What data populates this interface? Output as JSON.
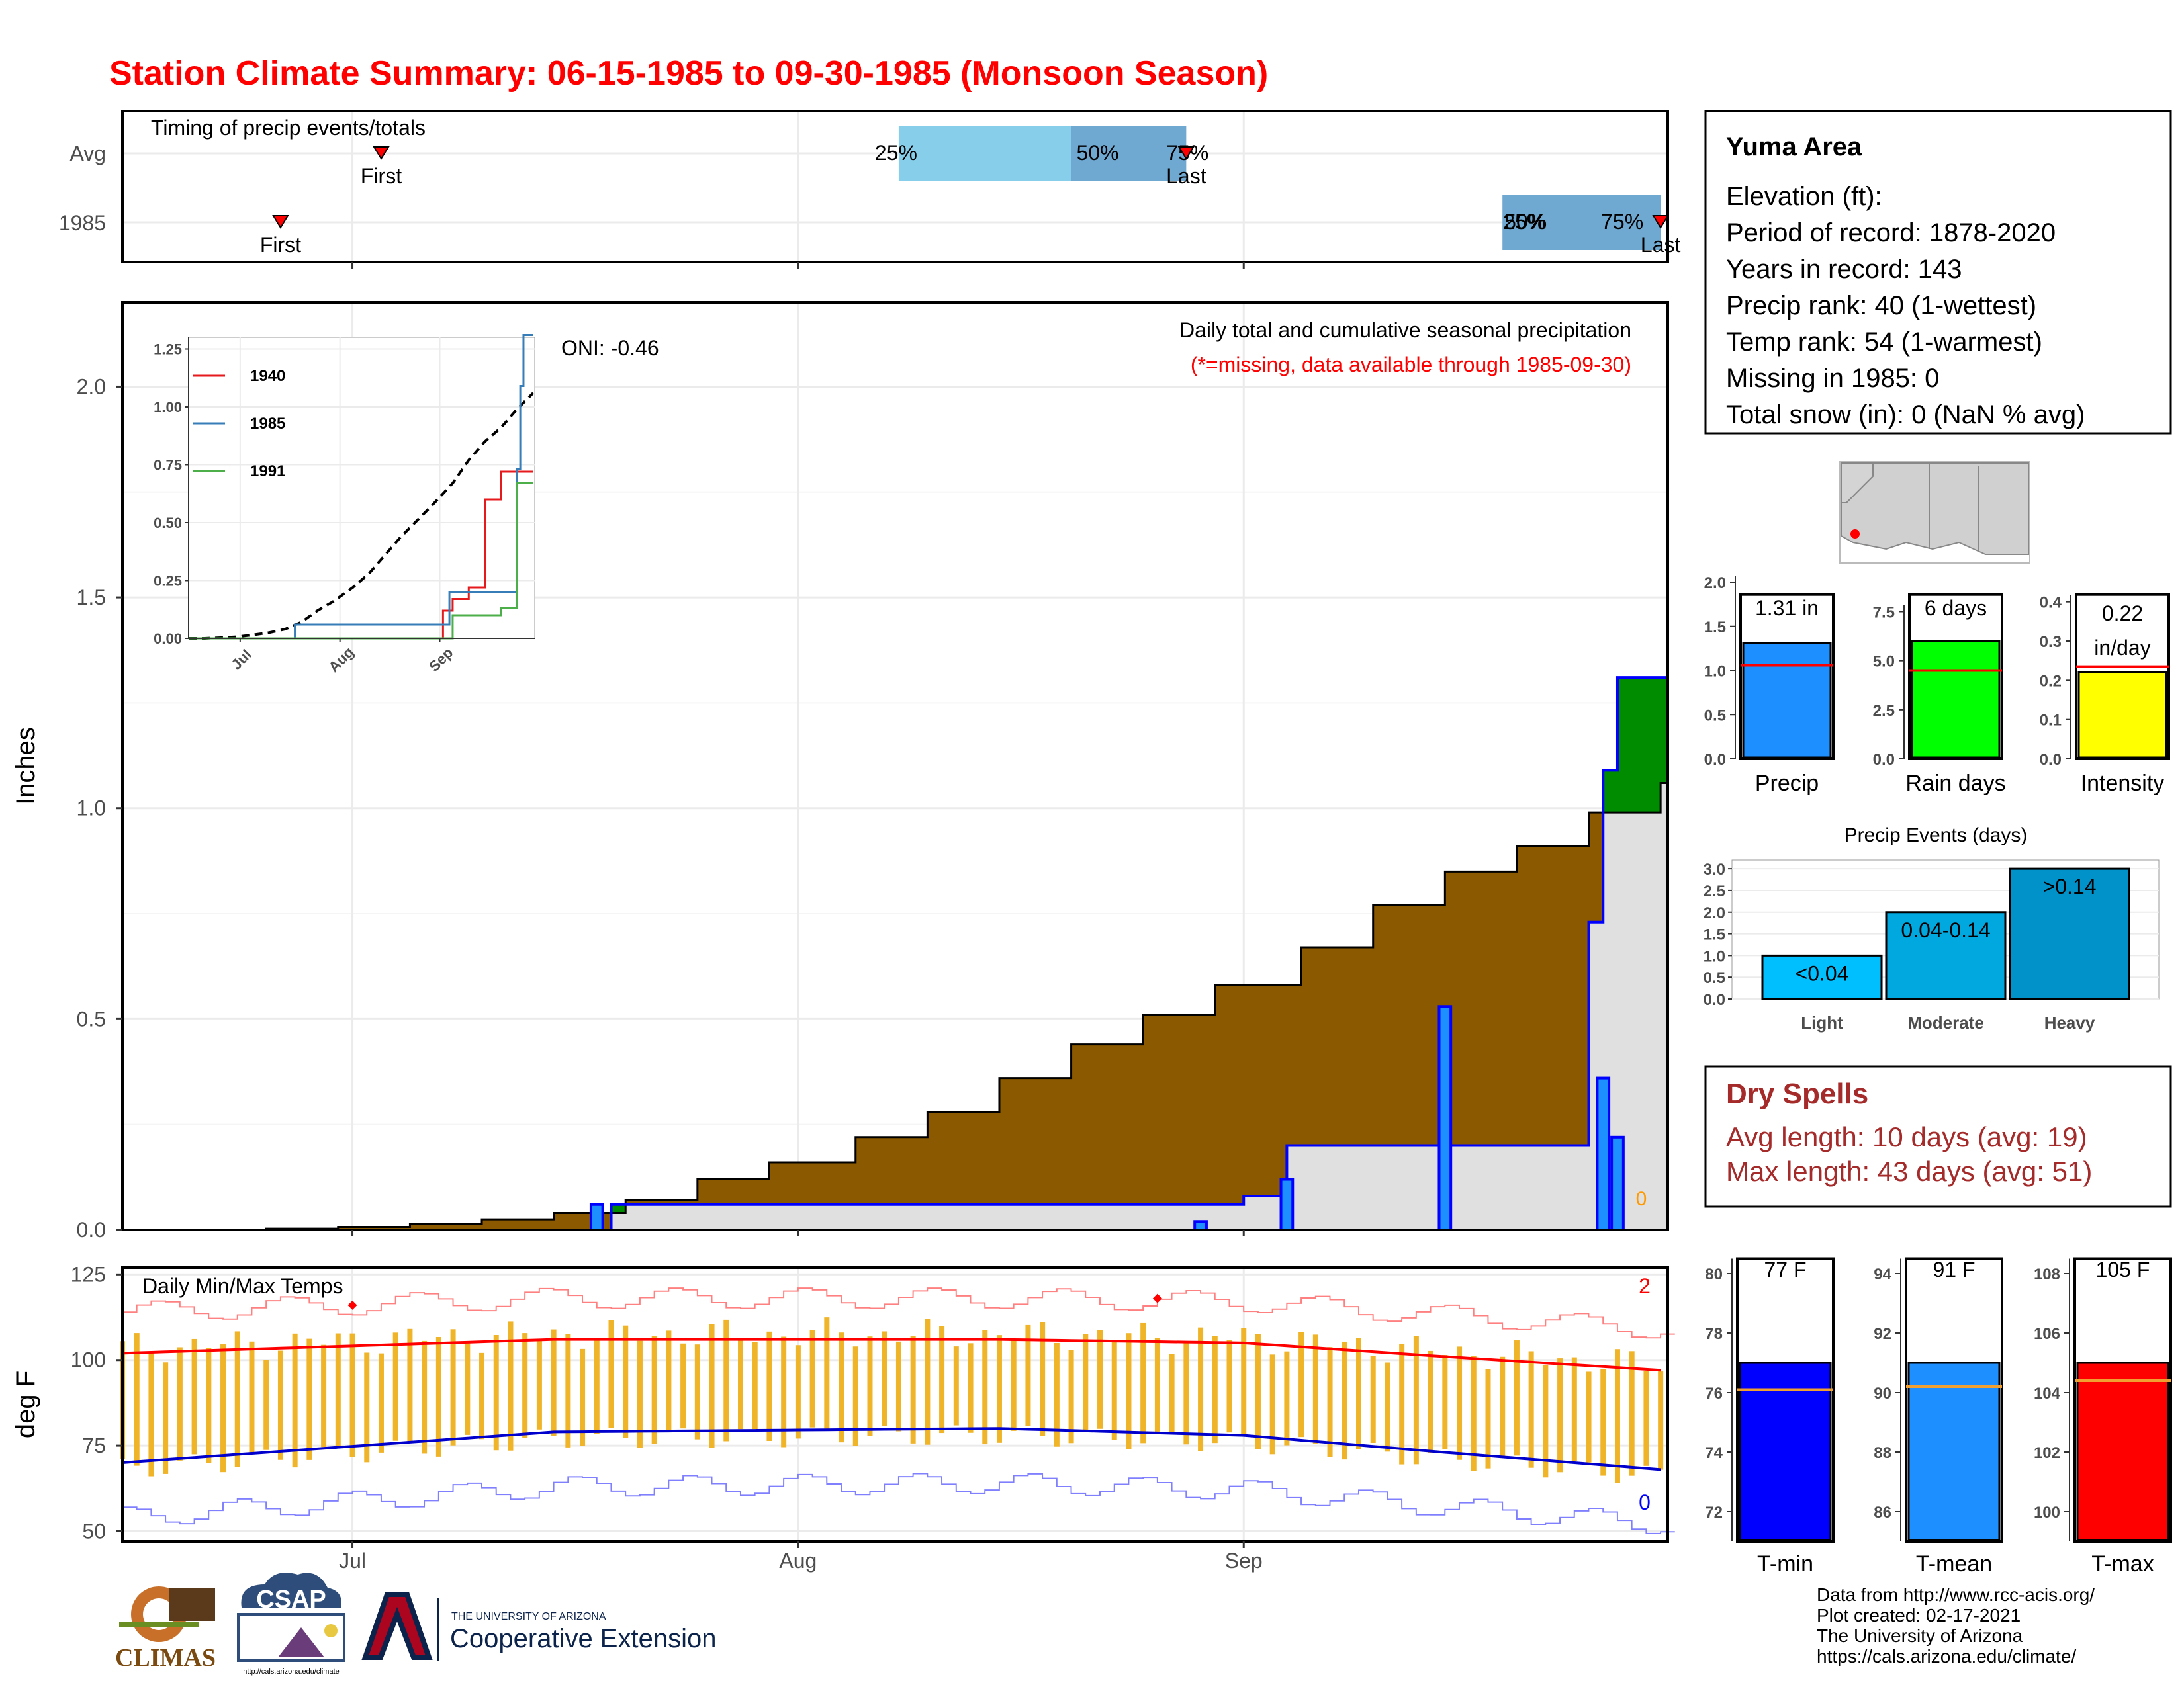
{
  "title": "Station Climate Summary: 06-15-1985 to 09-30-1985 (Monsoon Season)",
  "timing": {
    "label": "Timing of precip events/totals",
    "rows": [
      {
        "name": "Avg",
        "first_date": "1985-07-03",
        "last_date": "1985-08-28",
        "q25_date": "1985-08-08",
        "q50_date": "1985-08-20",
        "q75_date": "1985-08-28"
      },
      {
        "name": "1985",
        "first_date": "1985-06-26",
        "last_date": "1985-09-30",
        "q25_date": "1985-09-19",
        "q50_date": "1985-09-19",
        "q75_date": "1985-09-30"
      }
    ],
    "first_label": "First",
    "last_label": "Last",
    "q_labels": [
      "25%",
      "50%",
      "75%"
    ],
    "q_labels_1985": [
      "25%",
      "50%",
      "75%"
    ]
  },
  "precip_panel": {
    "title": "Daily total and cumulative seasonal precipitation",
    "subtitle": "(*=missing, data available through 1985-09-30)",
    "oni": "ONI: -0.46",
    "ylabel": "Inches",
    "yticks": [
      "0.0",
      "0.5",
      "1.0",
      "1.5",
      "2.0"
    ],
    "missing_count": "0"
  },
  "temp_panel": {
    "title": "Daily Min/Max Temps",
    "ylabel": "deg F",
    "yticks": [
      "50",
      "75",
      "100",
      "125"
    ],
    "record_high_count": "2",
    "record_low_count": "0"
  },
  "xaxis": {
    "ticks": [
      "Jul",
      "Aug",
      "Sep"
    ]
  },
  "inset": {
    "yticks": [
      "0.00",
      "0.25",
      "0.50",
      "0.75",
      "1.00",
      "1.25"
    ],
    "xticks": [
      "Jul",
      "Aug",
      "Sep"
    ],
    "legend": [
      {
        "name": "1940",
        "color": "#e41a1c"
      },
      {
        "name": "1985",
        "color": "#377eb8"
      },
      {
        "name": "1991",
        "color": "#4daf4a"
      }
    ]
  },
  "info": {
    "station": "Yuma Area",
    "lines": [
      "Elevation (ft):",
      "Period of record: 1878-2020",
      "Years in record: 143",
      "Precip rank: 40 (1-wettest)",
      "Temp rank: 54 (1-warmest)",
      "Missing in 1985: 0",
      "Total snow (in): 0 (NaN % avg)"
    ]
  },
  "mini_bars": [
    {
      "label": "Precip",
      "value": 1.31,
      "avg": 1.06,
      "ymax": 2.0,
      "yticks": [
        "0.0",
        "0.5",
        "1.0",
        "1.5",
        "2.0"
      ],
      "tickvals": [
        0,
        0.5,
        1,
        1.5,
        2
      ],
      "text": "1.31 in",
      "text2": "",
      "color": "#1e8fff"
    },
    {
      "label": "Rain days",
      "value": 6,
      "avg": 4.5,
      "ymax": 9.0,
      "yticks": [
        "0.0",
        "2.5",
        "5.0",
        "7.5"
      ],
      "tickvals": [
        0,
        2.5,
        5,
        7.5
      ],
      "text": "6 days",
      "text2": "",
      "color": "#00ff00"
    },
    {
      "label": "Intensity",
      "value": 0.22,
      "avg": 0.235,
      "ymax": 0.45,
      "yticks": [
        "0.0",
        "0.1",
        "0.2",
        "0.3",
        "0.4"
      ],
      "tickvals": [
        0,
        0.1,
        0.2,
        0.3,
        0.4
      ],
      "text": "0.22",
      "text2": "in/day",
      "color": "#ffff00"
    }
  ],
  "events": {
    "title": "Precip Events (days)",
    "categories": [
      "Light",
      "Moderate",
      "Heavy"
    ],
    "values": [
      1,
      2,
      3
    ],
    "labels": [
      "<0.04",
      "0.04-0.14",
      ">0.14"
    ],
    "yticks": [
      "0.0",
      "0.5",
      "1.0",
      "1.5",
      "2.0",
      "2.5",
      "3.0"
    ]
  },
  "dry_spells": {
    "title": "Dry Spells",
    "avg_line": "Avg length: 10 days (avg: 19)",
    "max_line": "Max length: 43 days (avg: 51)"
  },
  "temp_bars": [
    {
      "label": "T-min",
      "value": 77,
      "avg": 76.1,
      "ymin": 71,
      "ymax": 81,
      "yticks": [
        "72",
        "74",
        "76",
        "78",
        "80"
      ],
      "tickvals": [
        72,
        74,
        76,
        78,
        80
      ],
      "text": "77 F",
      "color": "#0000ff"
    },
    {
      "label": "T-mean",
      "value": 91,
      "avg": 90.2,
      "ymin": 85,
      "ymax": 95,
      "yticks": [
        "86",
        "88",
        "90",
        "92",
        "94"
      ],
      "tickvals": [
        86,
        88,
        90,
        92,
        94
      ],
      "text": "91 F",
      "color": "#1e8fff"
    },
    {
      "label": "T-max",
      "value": 105,
      "avg": 104.4,
      "ymin": 99,
      "ymax": 109,
      "yticks": [
        "100",
        "102",
        "104",
        "106",
        "108"
      ],
      "tickvals": [
        100,
        102,
        104,
        106,
        108
      ],
      "text": "105 F",
      "color": "#ff0000"
    }
  ],
  "credits": [
    "Data from http://www.rcc-acis.org/",
    "Plot created: 02-17-2021",
    "The University of Arizona",
    "https://cals.arizona.edu/climate/"
  ],
  "logos": {
    "climas": "CLIMAS",
    "csap": "CSAP",
    "csap_url": "http://cals.arizona.edu/climate",
    "ua_top": "THE UNIVERSITY OF ARIZONA",
    "ua_bottom": "Cooperative Extension"
  },
  "chart_data": [
    {
      "type": "area",
      "title": "Daily total and cumulative seasonal precipitation",
      "ylabel": "Inches",
      "ylim": [
        0,
        2.2
      ],
      "x_range": [
        "1985-06-15",
        "1985-09-30"
      ],
      "series": [
        {
          "name": "cumulative average",
          "x": [
            "1985-06-15",
            "1985-06-20",
            "1985-06-25",
            "1985-06-30",
            "1985-07-05",
            "1985-07-10",
            "1985-07-15",
            "1985-07-20",
            "1985-07-25",
            "1985-07-30",
            "1985-08-05",
            "1985-08-10",
            "1985-08-15",
            "1985-08-20",
            "1985-08-25",
            "1985-08-30",
            "1985-09-05",
            "1985-09-10",
            "1985-09-15",
            "1985-09-20",
            "1985-09-25",
            "1985-09-30"
          ],
          "values": [
            0,
            0,
            0.003,
            0.007,
            0.015,
            0.025,
            0.04,
            0.07,
            0.12,
            0.16,
            0.22,
            0.28,
            0.36,
            0.44,
            0.51,
            0.58,
            0.67,
            0.77,
            0.85,
            0.91,
            0.99,
            1.06
          ]
        },
        {
          "name": "cumulative 1985",
          "x": [
            "1985-06-15",
            "1985-07-18",
            "1985-07-19",
            "1985-09-01",
            "1985-09-04",
            "1985-09-15",
            "1985-09-25",
            "1985-09-26",
            "1985-09-27",
            "1985-09-30"
          ],
          "values": [
            0,
            0,
            0.06,
            0.08,
            0.2,
            0.2,
            0.73,
            1.09,
            1.31,
            1.31
          ]
        },
        {
          "name": "daily 1985",
          "x": [
            "1985-07-18",
            "1985-08-29",
            "1985-09-04",
            "1985-09-15",
            "1985-09-26",
            "1985-09-27"
          ],
          "values": [
            0.06,
            0.02,
            0.12,
            0.53,
            0.36,
            0.22
          ]
        }
      ]
    },
    {
      "type": "line",
      "title": "Daily Min/Max Temps",
      "ylabel": "deg F",
      "ylim": [
        47,
        127
      ],
      "series": [
        {
          "name": "average max",
          "x": [
            "1985-06-15",
            "1985-07-15",
            "1985-08-15",
            "1985-09-01",
            "1985-09-15",
            "1985-09-30"
          ],
          "values": [
            102,
            106,
            106,
            105,
            101,
            97
          ]
        },
        {
          "name": "average min",
          "x": [
            "1985-06-15",
            "1985-07-15",
            "1985-08-15",
            "1985-09-01",
            "1985-09-15",
            "1985-09-30"
          ],
          "values": [
            70,
            79,
            80,
            78,
            73,
            68
          ]
        }
      ]
    },
    {
      "type": "line",
      "title": "",
      "ylim": [
        0,
        1.3
      ],
      "xticks": [
        "Jul",
        "Aug",
        "Sep"
      ],
      "series": [
        {
          "name": "1940",
          "x": [
            "1985-06-15",
            "1985-08-30",
            "1985-09-02",
            "1985-09-05",
            "1985-09-10",
            "1985-09-15",
            "1985-09-20",
            "1985-09-30"
          ],
          "values": [
            0,
            0,
            0.12,
            0.17,
            0.22,
            0.6,
            0.72,
            0.72
          ]
        },
        {
          "name": "1985",
          "x": [
            "1985-06-15",
            "1985-07-18",
            "1985-09-04",
            "1985-09-15",
            "1985-09-25",
            "1985-09-26",
            "1985-09-27",
            "1985-09-30"
          ],
          "values": [
            0,
            0.06,
            0.2,
            0.2,
            0.73,
            1.09,
            1.31,
            1.31
          ]
        },
        {
          "name": "1991",
          "x": [
            "1985-06-15",
            "1985-09-01",
            "1985-09-05",
            "1985-09-20",
            "1985-09-25",
            "1985-09-30"
          ],
          "values": [
            0,
            0,
            0.1,
            0.13,
            0.67,
            0.67
          ]
        }
      ]
    }
  ]
}
